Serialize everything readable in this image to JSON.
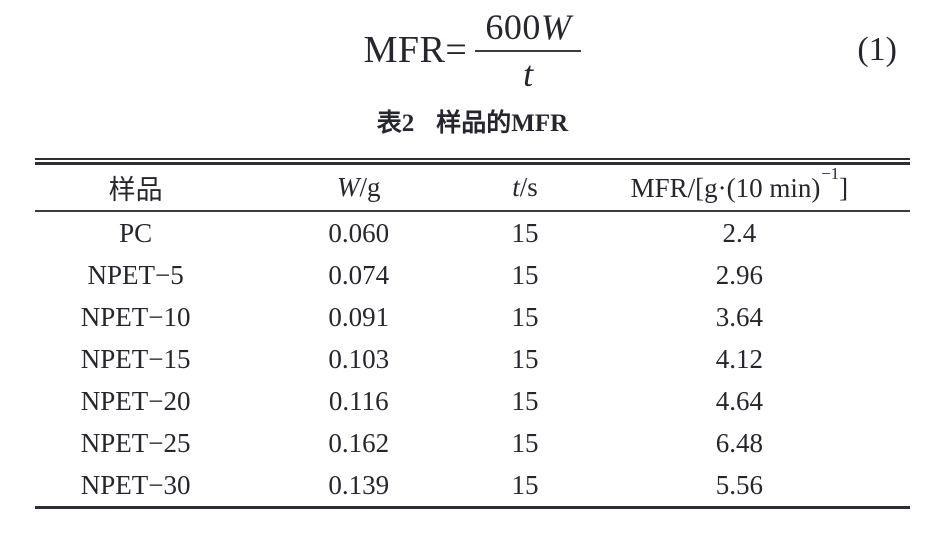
{
  "equation": {
    "lhs": "MFR=",
    "numerator_coefficient": "600",
    "numerator_variable": "W",
    "denominator_variable": "t",
    "number": "(1)"
  },
  "table": {
    "caption": {
      "label": "表2",
      "title": "样品的MFR"
    },
    "headers": {
      "sample": "样品",
      "w_variable": "W",
      "w_unit": "/g",
      "t_variable": "t",
      "t_unit": "/s",
      "mfr_prefix": "MFR/[g·(10 min)",
      "mfr_sup": "−1",
      "mfr_suffix": "]"
    },
    "rows": [
      {
        "sample": "PC",
        "w": "0.060",
        "t": "15",
        "mfr": "2.4"
      },
      {
        "sample": "NPET−5",
        "w": "0.074",
        "t": "15",
        "mfr": "2.96"
      },
      {
        "sample": "NPET−10",
        "w": "0.091",
        "t": "15",
        "mfr": "3.64"
      },
      {
        "sample": "NPET−15",
        "w": "0.103",
        "t": "15",
        "mfr": "4.12"
      },
      {
        "sample": "NPET−20",
        "w": "0.116",
        "t": "15",
        "mfr": "4.64"
      },
      {
        "sample": "NPET−25",
        "w": "0.162",
        "t": "15",
        "mfr": "6.48"
      },
      {
        "sample": "NPET−30",
        "w": "0.139",
        "t": "15",
        "mfr": "5.56"
      }
    ]
  },
  "colors": {
    "text": "#26262f",
    "rule": "#2e2e38"
  }
}
